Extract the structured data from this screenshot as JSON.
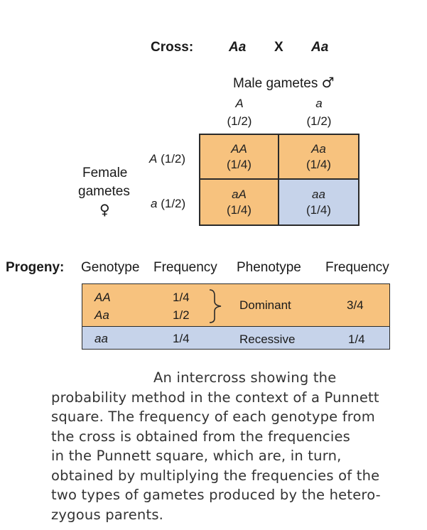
{
  "cross": {
    "label": "Cross:",
    "parent1": "Aa",
    "x": "X",
    "parent2": "Aa"
  },
  "male": {
    "title": "Male gametes",
    "symbol": "♂",
    "gametes": [
      {
        "allele": "A",
        "freq": "(1/2)"
      },
      {
        "allele": "a",
        "freq": "(1/2)"
      }
    ]
  },
  "female": {
    "title_line1": "Female",
    "title_line2": "gametes",
    "symbol": "♀",
    "gametes": [
      {
        "allele": "A",
        "freq": "(1/2)"
      },
      {
        "allele": "a",
        "freq": "(1/2)"
      }
    ]
  },
  "punnett": [
    {
      "genotype": "AA",
      "freq": "(1/4)"
    },
    {
      "genotype": "Aa",
      "freq": "(1/4)"
    },
    {
      "genotype": "aA",
      "freq": "(1/4)"
    },
    {
      "genotype": "aa",
      "freq": "(1/4)"
    }
  ],
  "progeny": {
    "label": "Progeny:",
    "headers": [
      "Genotype",
      "Frequency",
      "Phenotype",
      "Frequency"
    ],
    "rows": [
      {
        "genotype": "AA",
        "freq": "1/4"
      },
      {
        "genotype": "Aa",
        "freq": "1/2"
      },
      {
        "genotype": "aa",
        "freq": "1/4"
      }
    ],
    "phenotypes": [
      {
        "name": "Dominant",
        "freq": "3/4"
      },
      {
        "name": "Recessive",
        "freq": "1/4"
      }
    ]
  },
  "caption": [
    "An intercross showing the",
    "probability method in the context of a Punnett",
    "square. The frequency of each genotype from",
    "the cross is obtained from the frequencies",
    "in the Punnett square, which are, in turn,",
    "obtained by multiplying the frequencies of the",
    "two types of gametes produced by the hetero-",
    "zygous parents."
  ],
  "colors": {
    "dominant": "#f7c27e",
    "recessive": "#c6d3ea",
    "border": "#2a2a2a"
  }
}
